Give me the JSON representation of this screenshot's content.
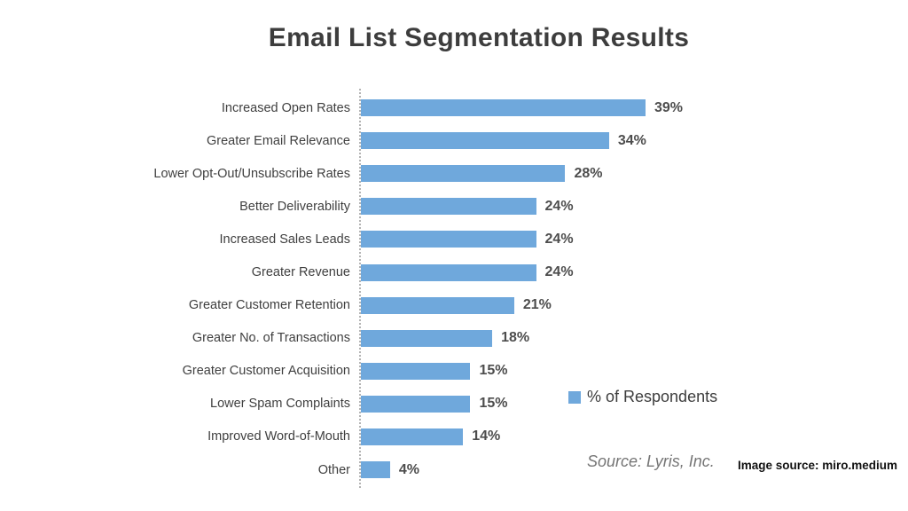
{
  "chart_data": {
    "type": "bar",
    "orientation": "horizontal",
    "title": "Email List Segmentation Results",
    "categories": [
      "Increased Open Rates",
      "Greater Email Relevance",
      "Lower Opt-Out/Unsubscribe Rates",
      "Better Deliverability",
      "Increased Sales Leads",
      "Greater Revenue",
      "Greater Customer Retention",
      "Greater No. of Transactions",
      "Greater Customer Acquisition",
      "Lower Spam Complaints",
      "Improved Word-of-Mouth",
      "Other"
    ],
    "values": [
      39,
      34,
      28,
      24,
      24,
      24,
      21,
      18,
      15,
      15,
      14,
      4
    ],
    "value_labels": [
      "39%",
      "34%",
      "28%",
      "24%",
      "24%",
      "24%",
      "21%",
      "18%",
      "15%",
      "15%",
      "14%",
      "4%"
    ],
    "series_name": "% of Respondents",
    "legend_position": "center-right",
    "xlim": [
      0,
      40
    ],
    "grid": false,
    "axis_style": "dotted-vertical-baseline",
    "source_note": "Source: Lyris, Inc."
  },
  "footer": {
    "image_credit": "Image source: miro.medium"
  },
  "colors": {
    "bar": "#6FA8DC",
    "title_text": "#3D3D3D",
    "label_text": "#3F3F3F",
    "value_text": "#4D4D4D",
    "source_text": "#757575",
    "axis_line": "#B3B3B3",
    "background": "#FFFFFF"
  }
}
